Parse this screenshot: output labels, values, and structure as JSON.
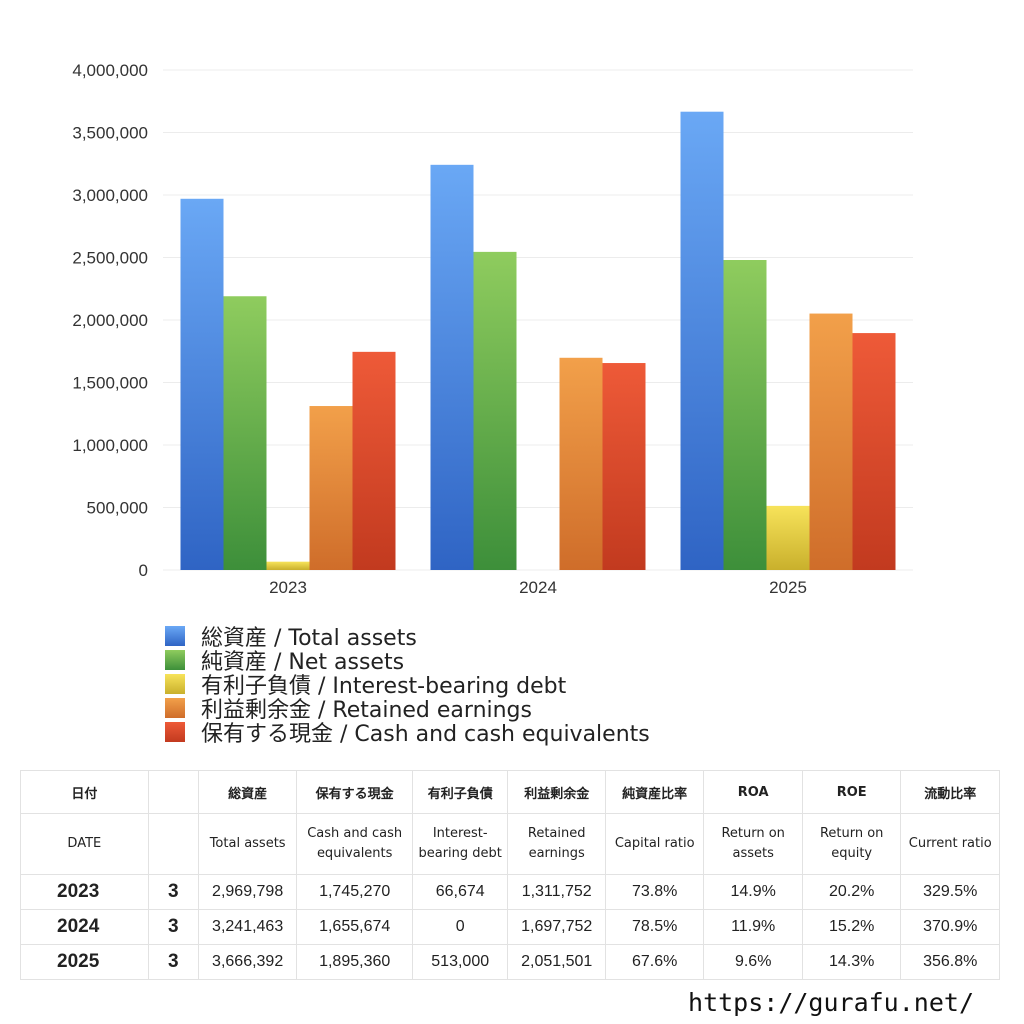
{
  "chart_data": {
    "type": "bar",
    "categories": [
      "2023",
      "2024",
      "2025"
    ],
    "ylim": [
      0,
      4000000
    ],
    "yticks": [
      "0",
      "500,000",
      "1,000,000",
      "1,500,000",
      "2,000,000",
      "2,500,000",
      "3,000,000",
      "3,500,000",
      "4,000,000"
    ],
    "grid": true,
    "legend_position": "bottom",
    "series": [
      {
        "name": "総資産 / Total assets",
        "values": [
          2969798,
          3241463,
          3666392
        ],
        "color_top": "#6aa8f5",
        "color_bottom": "#2f64c4"
      },
      {
        "name": "純資産 / Net assets",
        "values": [
          2190000,
          2545000,
          2480000
        ],
        "color_top": "#8fcc5e",
        "color_bottom": "#3d8f3a"
      },
      {
        "name": "有利子負債 / Interest-bearing debt",
        "values": [
          66674,
          0,
          513000
        ],
        "color_top": "#f7e35a",
        "color_bottom": "#c9b02c"
      },
      {
        "name": "利益剰余金 / Retained earnings",
        "values": [
          1311752,
          1697752,
          2051501
        ],
        "color_top": "#f2a04a",
        "color_bottom": "#cf6d2a"
      },
      {
        "name": "保有する現金 /  Cash and cash equivalents",
        "values": [
          1745270,
          1655674,
          1895360
        ],
        "color_top": "#ee5a38",
        "color_bottom": "#c23a1f"
      }
    ]
  },
  "table": {
    "headers_ja": [
      "日付",
      "",
      "総資産",
      "保有する現金",
      "有利子負債",
      "利益剰余金",
      "純資産比率",
      "ROA",
      "ROE",
      "流動比率"
    ],
    "headers_en": [
      "DATE",
      "",
      "Total assets",
      "Cash and cash equivalents",
      "Interest-bearing debt",
      "Retained earnings",
      "Capital ratio",
      "Return on assets",
      "Return on equity",
      "Current ratio"
    ],
    "rows": [
      [
        "2023",
        "3",
        "2,969,798",
        "1,745,270",
        "66,674",
        "1,311,752",
        "73.8%",
        "14.9%",
        "20.2%",
        "329.5%"
      ],
      [
        "2024",
        "3",
        "3,241,463",
        "1,655,674",
        "0",
        "1,697,752",
        "78.5%",
        "11.9%",
        "15.2%",
        "370.9%"
      ],
      [
        "2025",
        "3",
        "3,666,392",
        "1,895,360",
        "513,000",
        "2,051,501",
        "67.6%",
        "9.6%",
        "14.3%",
        "356.8%"
      ]
    ]
  },
  "watermark": "https://gurafu.net/"
}
